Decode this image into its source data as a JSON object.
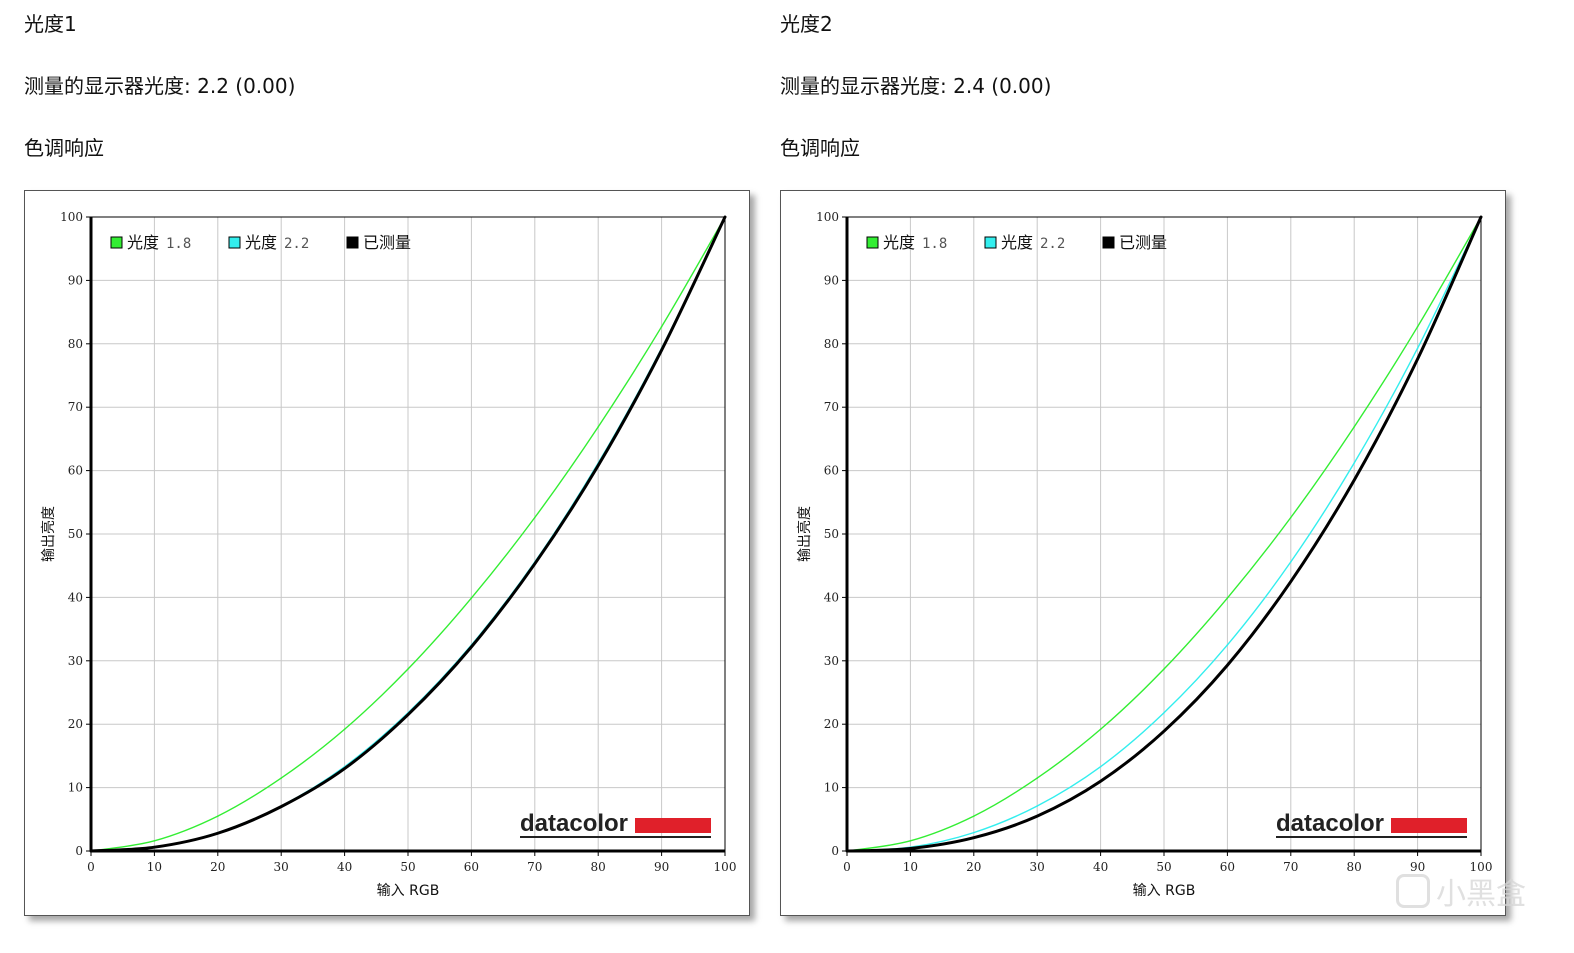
{
  "panels": [
    {
      "title": "光度1",
      "measured_label": "测量的显示器光度:",
      "measured_value": "2.2 (0.00)",
      "section_label": "色调响应"
    },
    {
      "title": "光度2",
      "measured_label": "测量的显示器光度:",
      "measured_value": "2.4 (0.00)",
      "section_label": "色调响应"
    }
  ],
  "brand": {
    "logo_text": "datacolor",
    "color": "#e0202a"
  },
  "watermark": {
    "text": "小黑盒"
  },
  "colors": {
    "gamma18": "#33ee33",
    "gamma22": "#33eeee",
    "measured": "#000000",
    "grid": "#c8c8c8"
  },
  "chart_data": [
    {
      "type": "line",
      "xlabel": "输入 RGB",
      "ylabel": "输出亮度",
      "xlim": [
        0,
        100
      ],
      "ylim": [
        0,
        100
      ],
      "xticks": [
        0,
        10,
        20,
        30,
        40,
        50,
        60,
        70,
        80,
        90,
        100
      ],
      "yticks": [
        0,
        10,
        20,
        30,
        40,
        50,
        60,
        70,
        80,
        90,
        100
      ],
      "grid": true,
      "legend_position": "top-left",
      "legend": [
        {
          "label": "光度",
          "value": "1.8",
          "color": "#33ee33"
        },
        {
          "label": "光度",
          "value": "2.2",
          "color": "#33eeee"
        },
        {
          "label": "已测量",
          "value": "",
          "color": "#000000"
        }
      ],
      "x": [
        0,
        10,
        20,
        30,
        40,
        50,
        60,
        70,
        80,
        90,
        100
      ],
      "series": [
        {
          "name": "光度 1.8",
          "values": [
            0,
            1.6,
            5.5,
            11.5,
            19.2,
            28.7,
            39.9,
            52.6,
            66.9,
            82.7,
            100
          ]
        },
        {
          "name": "光度 2.2",
          "values": [
            0,
            0.6,
            2.9,
            7.1,
            13.3,
            21.8,
            32.5,
            45.6,
            61.2,
            79.3,
            100
          ]
        },
        {
          "name": "已测量",
          "values": [
            0,
            0.6,
            2.8,
            7.0,
            13.0,
            21.5,
            32.2,
            45.3,
            60.8,
            79.0,
            100
          ]
        }
      ]
    },
    {
      "type": "line",
      "xlabel": "输入 RGB",
      "ylabel": "输出亮度",
      "xlim": [
        0,
        100
      ],
      "ylim": [
        0,
        100
      ],
      "xticks": [
        0,
        10,
        20,
        30,
        40,
        50,
        60,
        70,
        80,
        90,
        100
      ],
      "yticks": [
        0,
        10,
        20,
        30,
        40,
        50,
        60,
        70,
        80,
        90,
        100
      ],
      "grid": true,
      "legend_position": "top-left",
      "legend": [
        {
          "label": "光度",
          "value": "1.8",
          "color": "#33ee33"
        },
        {
          "label": "光度",
          "value": "2.2",
          "color": "#33eeee"
        },
        {
          "label": "已测量",
          "value": "",
          "color": "#000000"
        }
      ],
      "x": [
        0,
        10,
        20,
        30,
        40,
        50,
        60,
        70,
        80,
        90,
        100
      ],
      "series": [
        {
          "name": "光度 1.8",
          "values": [
            0,
            1.6,
            5.5,
            11.5,
            19.2,
            28.7,
            39.9,
            52.6,
            66.9,
            82.7,
            100
          ]
        },
        {
          "name": "光度 2.2",
          "values": [
            0,
            0.6,
            2.9,
            7.1,
            13.3,
            21.8,
            32.5,
            45.6,
            61.2,
            79.3,
            100
          ]
        },
        {
          "name": "已测量",
          "values": [
            0,
            0.4,
            2.1,
            5.5,
            11.0,
            18.9,
            29.3,
            42.5,
            58.5,
            77.6,
            100
          ]
        }
      ]
    }
  ]
}
